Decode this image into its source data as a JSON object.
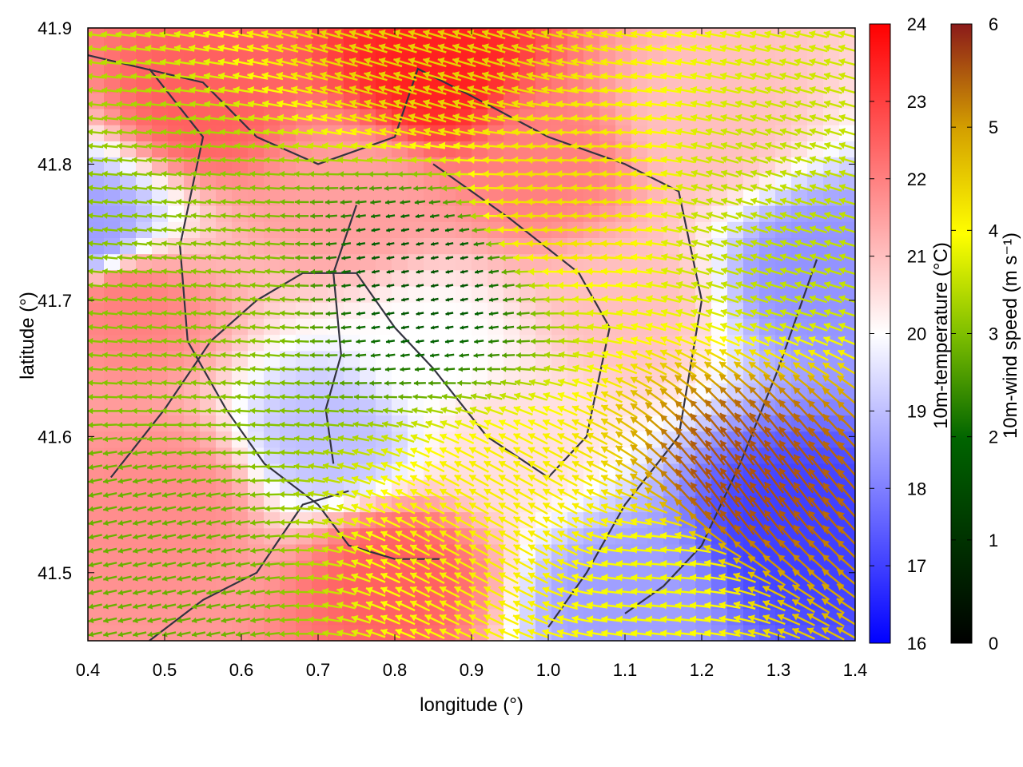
{
  "chart_data": {
    "type": "heatmap",
    "title": "",
    "xlabel": "longitude (°)",
    "ylabel": "latitude (°)",
    "xlim": [
      0.4,
      1.4
    ],
    "ylim": [
      41.45,
      41.9
    ],
    "xticks": [
      "0.4",
      "0.5",
      "0.6",
      "0.7",
      "0.8",
      "0.9",
      "1.0",
      "1.1",
      "1.2",
      "1.3",
      "1.4"
    ],
    "yticks": [
      "41.5",
      "41.6",
      "41.7",
      "41.8",
      "41.9"
    ],
    "grid": false,
    "temperature_colorbar": {
      "label": "10m-temperature (°C)",
      "range": [
        16,
        24
      ],
      "ticks": [
        "16",
        "17",
        "18",
        "19",
        "20",
        "21",
        "22",
        "23",
        "24"
      ],
      "colors": [
        "#0000ff",
        "#ffffff",
        "#ff0000"
      ]
    },
    "wind_colorbar": {
      "label": "10m-wind speed (m s⁻¹)",
      "range": [
        0,
        6
      ],
      "ticks": [
        "0",
        "1",
        "2",
        "3",
        "4",
        "5",
        "6"
      ],
      "colors": [
        "#000000",
        "#006400",
        "#7fbf00",
        "#ffff00",
        "#d4a000",
        "#8b1a1a"
      ]
    },
    "temperature_regions": [
      {
        "lon": 0.55,
        "lat": 41.85,
        "value": 22.5
      },
      {
        "lon": 0.85,
        "lat": 41.87,
        "value": 23.5
      },
      {
        "lon": 0.75,
        "lat": 41.78,
        "value": 21.5
      },
      {
        "lon": 0.45,
        "lat": 41.7,
        "value": 22
      },
      {
        "lon": 0.5,
        "lat": 41.55,
        "value": 21.8
      },
      {
        "lon": 0.8,
        "lat": 41.5,
        "value": 22.5
      },
      {
        "lon": 1.0,
        "lat": 41.8,
        "value": 22
      },
      {
        "lon": 1.2,
        "lat": 41.83,
        "value": 21
      },
      {
        "lon": 0.85,
        "lat": 41.66,
        "value": 20
      },
      {
        "lon": 0.72,
        "lat": 41.6,
        "value": 19
      },
      {
        "lon": 1.1,
        "lat": 41.7,
        "value": 21
      },
      {
        "lon": 1.32,
        "lat": 41.53,
        "value": 17
      },
      {
        "lon": 1.35,
        "lat": 41.72,
        "value": 18.3
      },
      {
        "lon": 1.1,
        "lat": 41.48,
        "value": 18.5
      },
      {
        "lon": 0.4,
        "lat": 41.75,
        "value": 18.5
      },
      {
        "lon": 0.95,
        "lat": 41.6,
        "value": 20.5
      }
    ],
    "wind_regions": [
      {
        "lon": 0.55,
        "lat": 41.7,
        "speed": 2.5,
        "u": -1,
        "v": 0.1
      },
      {
        "lon": 0.85,
        "lat": 41.72,
        "speed": 1.0,
        "u": -1,
        "v": -0.2
      },
      {
        "lon": 0.85,
        "lat": 41.88,
        "speed": 4.2,
        "u": -1,
        "v": 0.3
      },
      {
        "lon": 1.0,
        "lat": 41.77,
        "speed": 4.0,
        "u": -1,
        "v": 0.05
      },
      {
        "lon": 1.25,
        "lat": 41.56,
        "speed": 5.5,
        "u": -0.6,
        "v": 0.8
      },
      {
        "lon": 0.95,
        "lat": 41.54,
        "speed": 3.8,
        "u": -0.9,
        "v": 0.5
      },
      {
        "lon": 1.3,
        "lat": 41.75,
        "speed": 3.0,
        "u": -1,
        "v": 0.3
      },
      {
        "lon": 0.45,
        "lat": 41.5,
        "speed": 2.2,
        "u": -0.9,
        "v": -0.2
      },
      {
        "lon": 1.15,
        "lat": 41.5,
        "speed": 3.5,
        "u": -1,
        "v": 0.1
      }
    ]
  }
}
